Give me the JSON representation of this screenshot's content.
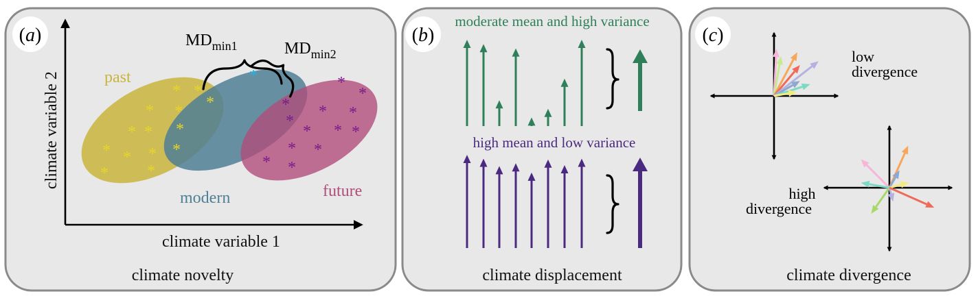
{
  "panel_a": {
    "letter_prefix": "(",
    "letter": "a",
    "letter_suffix": ")",
    "caption": "climate novelty",
    "x_axis_label": "climate variable 1",
    "y_axis_label": "climate variable 2",
    "md_main": "MD",
    "md1_sub": "min1",
    "md2_sub": "min2",
    "groups": {
      "past": {
        "label": "past",
        "color": "#c9b43d",
        "star_color": "#e6d62a"
      },
      "modern": {
        "label": "modern",
        "color": "#4f7f95",
        "star_color": "#2ab0e0"
      },
      "future": {
        "label": "future",
        "color": "#b04d7a",
        "star_color": "#7a1a8c"
      }
    },
    "star": "*"
  },
  "panel_b": {
    "letter_prefix": "(",
    "letter": "b",
    "letter_suffix": ")",
    "caption": "climate displacement",
    "top_label": "moderate mean and high variance",
    "bottom_label": "high mean and low variance",
    "top_color": "#2f7f5a",
    "bottom_color": "#4a2a80",
    "top_levels": [
      1.0,
      0.95,
      0.3,
      0.9,
      0.1,
      0.2,
      0.55,
      1.0
    ],
    "bottom_levels": [
      1.0,
      0.96,
      0.88,
      0.91,
      0.81,
      0.95,
      0.89,
      0.96
    ]
  },
  "panel_c": {
    "letter_prefix": "(",
    "letter": "c",
    "letter_suffix": ")",
    "caption": "climate divergence",
    "low_label_line1": "low",
    "low_label_line2": "divergence",
    "high_label_line1": "high",
    "high_label_line2": "divergence",
    "low_arrows": [
      {
        "angle": 87,
        "length": 0.82,
        "color": "#f7b6d8"
      },
      {
        "angle": 80,
        "length": 0.7,
        "color": "#c8ea8f"
      },
      {
        "angle": 62,
        "length": 0.86,
        "color": "#f7a65a"
      },
      {
        "angle": 50,
        "length": 0.7,
        "color": "#f06a5a"
      },
      {
        "angle": 38,
        "length": 0.98,
        "color": "#b4b2e0"
      },
      {
        "angle": 30,
        "length": 0.52,
        "color": "#8fa8d0"
      },
      {
        "angle": 18,
        "length": 0.66,
        "color": "#7ed8c6"
      },
      {
        "angle": 10,
        "length": 0.4,
        "color": "#f2eb82"
      }
    ],
    "high_arrows": [
      {
        "angle": 66,
        "length": 0.8,
        "color": "#f7a65a"
      },
      {
        "angle": 135,
        "length": 0.7,
        "color": "#f7b6d8"
      },
      {
        "angle": 60,
        "length": 0.35,
        "color": "#8fa8d0"
      },
      {
        "angle": 15,
        "length": 0.35,
        "color": "#f2eb82"
      },
      {
        "angle": 170,
        "length": 0.5,
        "color": "#7ed8c6"
      },
      {
        "angle": 235,
        "length": 0.55,
        "color": "#a8d86a"
      },
      {
        "angle": 285,
        "length": 0.25,
        "color": "#b4b2e0"
      },
      {
        "angle": 336,
        "length": 0.85,
        "color": "#f06a5a"
      }
    ]
  }
}
